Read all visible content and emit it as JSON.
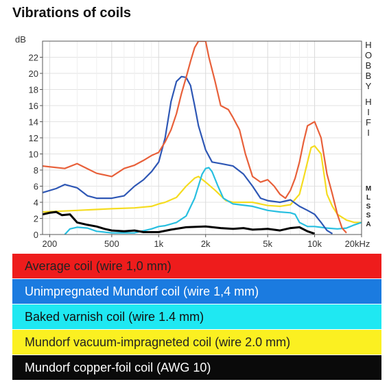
{
  "title": "Vibrations of coils",
  "chart_data": {
    "type": "line",
    "title": "Vibrations of coils",
    "ylabel": "dB",
    "xscale": "log",
    "xlim": [
      180,
      20000
    ],
    "ylim": [
      0,
      24
    ],
    "y_ticks": [
      0,
      2,
      4,
      6,
      8,
      10,
      12,
      14,
      16,
      18,
      20,
      22
    ],
    "x_ticks": [
      {
        "value": 200,
        "label": "200"
      },
      {
        "value": 500,
        "label": "500"
      },
      {
        "value": 1000,
        "label": "1k"
      },
      {
        "value": 2000,
        "label": "2k"
      },
      {
        "value": 5000,
        "label": "5k"
      },
      {
        "value": 10000,
        "label": "10k"
      },
      {
        "value": 20000,
        "label": "20kHz"
      }
    ],
    "series": [
      {
        "name": "Average coil (wire 1,0 mm)",
        "color": "#e8603a",
        "points": [
          [
            180,
            8.5
          ],
          [
            250,
            8.2
          ],
          [
            300,
            8.8
          ],
          [
            400,
            7.6
          ],
          [
            500,
            7.2
          ],
          [
            600,
            8.2
          ],
          [
            700,
            8.6
          ],
          [
            800,
            9.2
          ],
          [
            900,
            9.8
          ],
          [
            1000,
            10.2
          ],
          [
            1100,
            11.5
          ],
          [
            1200,
            13
          ],
          [
            1300,
            15
          ],
          [
            1400,
            17.5
          ],
          [
            1500,
            19.5
          ],
          [
            1600,
            21.5
          ],
          [
            1700,
            23.2
          ],
          [
            1800,
            24
          ],
          [
            2000,
            24
          ],
          [
            2100,
            22
          ],
          [
            2300,
            19
          ],
          [
            2500,
            16
          ],
          [
            2800,
            15.5
          ],
          [
            3000,
            14.5
          ],
          [
            3300,
            13
          ],
          [
            3600,
            10
          ],
          [
            4000,
            7.2
          ],
          [
            4500,
            6.5
          ],
          [
            5000,
            6.8
          ],
          [
            5500,
            6
          ],
          [
            6000,
            5
          ],
          [
            6500,
            4.5
          ],
          [
            7000,
            5.5
          ],
          [
            7500,
            7
          ],
          [
            8000,
            9
          ],
          [
            8500,
            11.5
          ],
          [
            9000,
            13.5
          ],
          [
            10000,
            14
          ],
          [
            11000,
            12
          ],
          [
            12000,
            7.5
          ],
          [
            13000,
            5
          ],
          [
            14000,
            2.5
          ],
          [
            15000,
            0.8
          ],
          [
            16000,
            0.2
          ]
        ]
      },
      {
        "name": "Unimpregnated Mundorf coil (wire 1,4 mm)",
        "color": "#2e57b5",
        "points": [
          [
            180,
            5.2
          ],
          [
            220,
            5.7
          ],
          [
            250,
            6.2
          ],
          [
            300,
            5.8
          ],
          [
            350,
            4.8
          ],
          [
            400,
            4.5
          ],
          [
            500,
            4.5
          ],
          [
            600,
            4.8
          ],
          [
            700,
            6
          ],
          [
            800,
            6.8
          ],
          [
            900,
            7.8
          ],
          [
            1000,
            9
          ],
          [
            1100,
            12
          ],
          [
            1200,
            16.5
          ],
          [
            1300,
            19
          ],
          [
            1400,
            19.6
          ],
          [
            1500,
            19.5
          ],
          [
            1600,
            18.5
          ],
          [
            1700,
            16
          ],
          [
            1800,
            13.5
          ],
          [
            2000,
            10.5
          ],
          [
            2200,
            9
          ],
          [
            2500,
            8.8
          ],
          [
            3000,
            8.5
          ],
          [
            3500,
            7.5
          ],
          [
            4000,
            6
          ],
          [
            4500,
            4.5
          ],
          [
            5000,
            4.2
          ],
          [
            6000,
            4
          ],
          [
            7000,
            4.3
          ],
          [
            8000,
            3.5
          ],
          [
            9000,
            3
          ],
          [
            10000,
            2.5
          ],
          [
            11000,
            1.5
          ],
          [
            12000,
            0.5
          ],
          [
            13000,
            0.1
          ]
        ]
      },
      {
        "name": "Baked varnish coil (wire 1.4 mm)",
        "color": "#28bfe0",
        "points": [
          [
            250,
            0
          ],
          [
            270,
            0.7
          ],
          [
            300,
            0.9
          ],
          [
            350,
            0.8
          ],
          [
            400,
            0.4
          ],
          [
            500,
            0.2
          ],
          [
            700,
            0.2
          ],
          [
            900,
            0.7
          ],
          [
            1000,
            1
          ],
          [
            1100,
            1.1
          ],
          [
            1200,
            1.3
          ],
          [
            1300,
            1.5
          ],
          [
            1500,
            2.3
          ],
          [
            1700,
            4.5
          ],
          [
            1900,
            7.5
          ],
          [
            2000,
            8.2
          ],
          [
            2100,
            8.3
          ],
          [
            2200,
            7.8
          ],
          [
            2400,
            6
          ],
          [
            2600,
            4.5
          ],
          [
            3000,
            3.8
          ],
          [
            4000,
            3.5
          ],
          [
            5000,
            3
          ],
          [
            6000,
            2.8
          ],
          [
            7000,
            2.7
          ],
          [
            7500,
            2.5
          ],
          [
            8000,
            1.5
          ],
          [
            9000,
            1
          ],
          [
            10000,
            1
          ],
          [
            12000,
            0.8
          ],
          [
            14000,
            0.7
          ],
          [
            16000,
            0.8
          ],
          [
            18000,
            1.2
          ],
          [
            20000,
            1.5
          ]
        ]
      },
      {
        "name": "Mundorf vacuum-impragneted coil (wire 2.0 mm)",
        "color": "#f5dc20",
        "points": [
          [
            180,
            2.8
          ],
          [
            300,
            3
          ],
          [
            500,
            3.2
          ],
          [
            700,
            3.3
          ],
          [
            900,
            3.5
          ],
          [
            1000,
            3.8
          ],
          [
            1100,
            4
          ],
          [
            1300,
            4.6
          ],
          [
            1500,
            6
          ],
          [
            1700,
            7
          ],
          [
            1800,
            7.2
          ],
          [
            2000,
            6.5
          ],
          [
            2300,
            5.5
          ],
          [
            2700,
            4.2
          ],
          [
            3000,
            4
          ],
          [
            4000,
            4
          ],
          [
            5000,
            3.6
          ],
          [
            6000,
            3.5
          ],
          [
            7000,
            3.7
          ],
          [
            8000,
            5
          ],
          [
            8500,
            7
          ],
          [
            9000,
            9
          ],
          [
            9500,
            10.8
          ],
          [
            10000,
            11
          ],
          [
            11000,
            10
          ],
          [
            12000,
            5
          ],
          [
            13000,
            3.5
          ],
          [
            14000,
            2.5
          ],
          [
            16000,
            1.8
          ],
          [
            18000,
            1.5
          ],
          [
            20000,
            1.5
          ]
        ]
      },
      {
        "name": "Mundorf copper-foil coil (AWG 10)",
        "color": "#000000",
        "points": [
          [
            180,
            2.5
          ],
          [
            200,
            2.7
          ],
          [
            220,
            2.8
          ],
          [
            240,
            2.4
          ],
          [
            270,
            2.5
          ],
          [
            300,
            1.5
          ],
          [
            350,
            1.2
          ],
          [
            400,
            1
          ],
          [
            450,
            0.7
          ],
          [
            500,
            0.5
          ],
          [
            600,
            0.4
          ],
          [
            700,
            0.5
          ],
          [
            800,
            0.3
          ],
          [
            900,
            0.3
          ],
          [
            1000,
            0.3
          ],
          [
            1200,
            0.6
          ],
          [
            1500,
            0.9
          ],
          [
            2000,
            1
          ],
          [
            2500,
            0.8
          ],
          [
            3000,
            0.7
          ],
          [
            3500,
            0.8
          ],
          [
            4000,
            0.6
          ],
          [
            5000,
            0.7
          ],
          [
            6000,
            0.5
          ],
          [
            7000,
            0.8
          ],
          [
            8000,
            0.9
          ],
          [
            9000,
            0.4
          ],
          [
            10000,
            0.1
          ]
        ]
      }
    ],
    "side_labels_top": [
      "H",
      "O",
      "B",
      "B",
      "Y",
      "H",
      "I",
      "F",
      "I"
    ],
    "side_labels_bottom": [
      "M",
      "L",
      "S",
      "S",
      "A"
    ]
  },
  "legend": [
    {
      "label": "Average coil (wire 1,0 mm)",
      "bg": "#ee1c1c",
      "fg": "#222222"
    },
    {
      "label": "Unimpregnated Mundorf coil (wire 1,4 mm)",
      "bg": "#1b7be0",
      "fg": "#ffffff"
    },
    {
      "label": "Baked varnish coil (wire 1.4 mm)",
      "bg": "#1fe8f2",
      "fg": "#111111"
    },
    {
      "label": "Mundorf vacuum-impragneted coil (wire 2.0 mm)",
      "bg": "#fbf021",
      "fg": "#222222"
    },
    {
      "label": "Mundorf copper-foil coil (AWG 10)",
      "bg": "#0a0a0a",
      "fg": "#ffffff"
    }
  ]
}
